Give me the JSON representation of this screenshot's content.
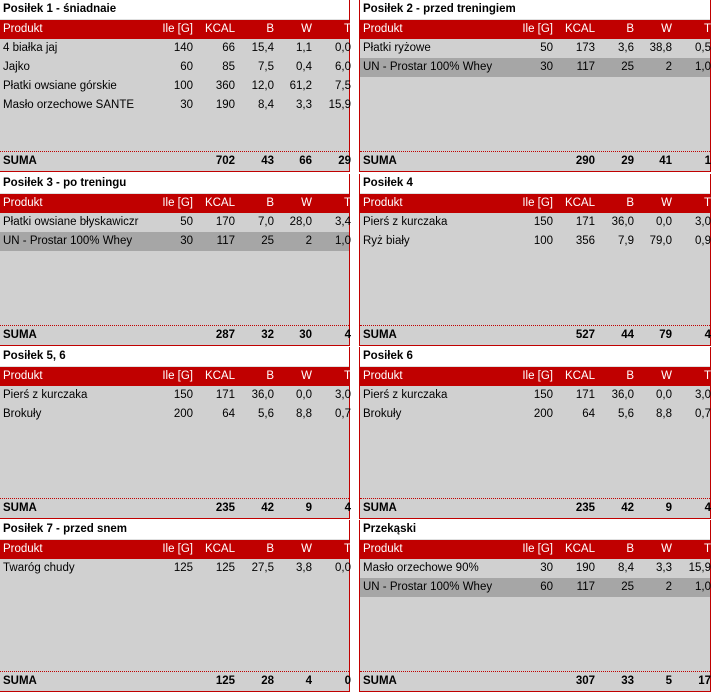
{
  "columns": {
    "product": "Produkt",
    "ile": "Ile [G]",
    "kcal": "KCAL",
    "b": "B",
    "w": "W",
    "t": "T"
  },
  "sum_label": "SUMA",
  "meals": [
    {
      "title": "Posiłek 1 - śniadnaie",
      "items": [
        {
          "name": "4 białka jaj",
          "ile": "140",
          "kcal": "66",
          "b": "15,4",
          "w": "1,1",
          "t": "0,0",
          "dark": false
        },
        {
          "name": "Jajko",
          "ile": "60",
          "kcal": "85",
          "b": "7,5",
          "w": "0,4",
          "t": "6,0",
          "dark": false
        },
        {
          "name": "Płatki owsiane górskie",
          "ile": "100",
          "kcal": "360",
          "b": "12,0",
          "w": "61,2",
          "t": "7,5",
          "dark": false
        },
        {
          "name": "Masło orzechowe SANTE",
          "ile": "30",
          "kcal": "190",
          "b": "8,4",
          "w": "3,3",
          "t": "15,9",
          "dark": false
        }
      ],
      "sum": {
        "kcal": "702",
        "b": "43",
        "w": "66",
        "t": "29"
      }
    },
    {
      "title": "Posiłek 2 - przed treningiem",
      "items": [
        {
          "name": "Płatki ryżowe",
          "ile": "50",
          "kcal": "173",
          "b": "3,6",
          "w": "38,8",
          "t": "0,5",
          "dark": false
        },
        {
          "name": "UN - Prostar 100% Whey",
          "ile": "30",
          "kcal": "117",
          "b": "25",
          "w": "2",
          "t": "1,0",
          "dark": true
        }
      ],
      "sum": {
        "kcal": "290",
        "b": "29",
        "w": "41",
        "t": "1"
      }
    },
    {
      "title": "Posiłek 3 - po treningu",
      "items": [
        {
          "name": "Płatki owsiane błyskawiczr",
          "ile": "50",
          "kcal": "170",
          "b": "7,0",
          "w": "28,0",
          "t": "3,4",
          "dark": false
        },
        {
          "name": "UN - Prostar 100% Whey",
          "ile": "30",
          "kcal": "117",
          "b": "25",
          "w": "2",
          "t": "1,0",
          "dark": true
        }
      ],
      "sum": {
        "kcal": "287",
        "b": "32",
        "w": "30",
        "t": "4"
      }
    },
    {
      "title": "Posiłek 4",
      "items": [
        {
          "name": "Pierś z kurczaka",
          "ile": "150",
          "kcal": "171",
          "b": "36,0",
          "w": "0,0",
          "t": "3,0",
          "dark": false
        },
        {
          "name": "Ryż biały",
          "ile": "100",
          "kcal": "356",
          "b": "7,9",
          "w": "79,0",
          "t": "0,9",
          "dark": false
        }
      ],
      "sum": {
        "kcal": "527",
        "b": "44",
        "w": "79",
        "t": "4"
      }
    },
    {
      "title": "Posiłek 5, 6",
      "items": [
        {
          "name": "Pierś z kurczaka",
          "ile": "150",
          "kcal": "171",
          "b": "36,0",
          "w": "0,0",
          "t": "3,0",
          "dark": false
        },
        {
          "name": "Brokuły",
          "ile": "200",
          "kcal": "64",
          "b": "5,6",
          "w": "8,8",
          "t": "0,7",
          "dark": false
        }
      ],
      "sum": {
        "kcal": "235",
        "b": "42",
        "w": "9",
        "t": "4"
      }
    },
    {
      "title": "Posiłek 6",
      "items": [
        {
          "name": "Pierś z kurczaka",
          "ile": "150",
          "kcal": "171",
          "b": "36,0",
          "w": "0,0",
          "t": "3,0",
          "dark": false
        },
        {
          "name": "Brokuły",
          "ile": "200",
          "kcal": "64",
          "b": "5,6",
          "w": "8,8",
          "t": "0,7",
          "dark": false
        }
      ],
      "sum": {
        "kcal": "235",
        "b": "42",
        "w": "9",
        "t": "4"
      }
    },
    {
      "title": "Posiłek 7 - przed snem",
      "items": [
        {
          "name": "Twaróg chudy",
          "ile": "125",
          "kcal": "125",
          "b": "27,5",
          "w": "3,8",
          "t": "0,0",
          "dark": false
        }
      ],
      "sum": {
        "kcal": "125",
        "b": "28",
        "w": "4",
        "t": "0"
      }
    },
    {
      "title": "Przekąski",
      "items": [
        {
          "name": "Masło orzechowe 90%",
          "ile": "30",
          "kcal": "190",
          "b": "8,4",
          "w": "3,3",
          "t": "15,9",
          "dark": false
        },
        {
          "name": "UN - Prostar 100% Whey",
          "ile": "60",
          "kcal": "117",
          "b": "25",
          "w": "2",
          "t": "1,0",
          "dark": true
        }
      ],
      "sum": {
        "kcal": "307",
        "b": "33",
        "w": "5",
        "t": "17"
      }
    }
  ]
}
